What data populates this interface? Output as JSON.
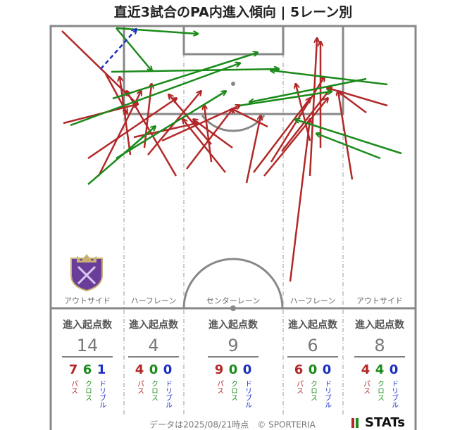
{
  "title": "直近3試合のPA内進入傾向 | 5レーン別",
  "legend": {
    "pass": "パス",
    "cross": "クロス",
    "dribble": "ドリブル"
  },
  "lanes": [
    {
      "name": "アウトサイド",
      "heading": "進入起点数",
      "total": 14,
      "pass": 7,
      "cross": 6,
      "dribble": 1
    },
    {
      "name": "ハーフレーン",
      "heading": "進入起点数",
      "total": 4,
      "pass": 4,
      "cross": 0,
      "dribble": 0
    },
    {
      "name": "センターレーン",
      "heading": "進入起点数",
      "total": 9,
      "pass": 9,
      "cross": 0,
      "dribble": 0
    },
    {
      "name": "ハーフレーン",
      "heading": "進入起点数",
      "total": 6,
      "pass": 6,
      "cross": 0,
      "dribble": 0
    },
    {
      "name": "アウトサイド",
      "heading": "進入起点数",
      "total": 8,
      "pass": 4,
      "cross": 4,
      "dribble": 0
    }
  ],
  "footer": "データは2025/08/21時点　© SPORTERIA",
  "logo": "STATs"
}
